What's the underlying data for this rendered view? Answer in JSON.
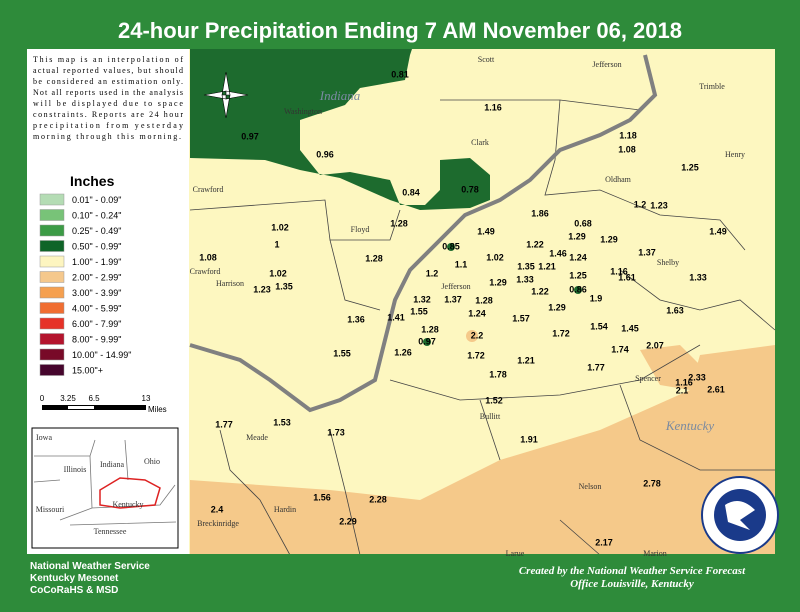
{
  "title": "24-hour Precipitation Ending 7 AM  November 06, 2018",
  "disclaimer": [
    "This map is an interpolation of",
    "actual reported values, but should",
    "be considered an estimation only.",
    "Not all reports used in the analysis",
    "will be displayed due to space",
    "constraints. Reports are 24 hour",
    "precipitation from yesterday",
    "morning through this morning."
  ],
  "legend": {
    "title": "Inches",
    "items": [
      {
        "label": "0.01\" - 0.09\"",
        "color": "#b4dcb4"
      },
      {
        "label": "0.10\" - 0.24\"",
        "color": "#78c378"
      },
      {
        "label": "0.25\" - 0.49\"",
        "color": "#3c9b46"
      },
      {
        "label": "0.50\" - 0.99\"",
        "color": "#0f6428"
      },
      {
        "label": "1.00\" - 1.99\"",
        "color": "#fdf5c0"
      },
      {
        "label": "2.00\" - 2.99\"",
        "color": "#f5c88c"
      },
      {
        "label": "3.00\" - 3.99\"",
        "color": "#f5a050"
      },
      {
        "label": "4.00\" - 5.99\"",
        "color": "#f06e32"
      },
      {
        "label": "6.00\" - 7.99\"",
        "color": "#e63228"
      },
      {
        "label": "8.00\" - 9.99\"",
        "color": "#b4142d"
      },
      {
        "label": "10.00\" - 14.99\"",
        "color": "#780a28"
      },
      {
        "label": "15.00\"+",
        "color": "#46052d"
      }
    ]
  },
  "scale": {
    "ticks": [
      0,
      3.25,
      6.5,
      13
    ],
    "unit": "Miles"
  },
  "inset_labels": [
    "Iowa",
    "Illinois",
    "Indiana",
    "Ohio",
    "Missouri",
    "Kentucky",
    "Tennessee"
  ],
  "state_labels": [
    "Indiana",
    "Kentucky"
  ],
  "county_labels": [
    "Scott",
    "Jefferson",
    "Trimble",
    "Washington",
    "Clark",
    "Henry",
    "Oldham",
    "Crawford",
    "Floyd",
    "Crawford",
    "Harrison",
    "Jefferson",
    "Shelby",
    "Spencer",
    "Bullitt",
    "Meade",
    "Hardin",
    "Nelson",
    "Breckinridge",
    "Larue",
    "Marion"
  ],
  "values": [
    0.81,
    1.16,
    0.97,
    0.96,
    1.18,
    1.08,
    1.25,
    0.84,
    0.78,
    1.2,
    1.23,
    1.49,
    1.02,
    1.28,
    1.86,
    0.68,
    1.29,
    1.29,
    1.49,
    1,
    1.22,
    1.46,
    1.24,
    1.37,
    0.85,
    1.08,
    1.28,
    1.02,
    1.1,
    1.35,
    1.21,
    1.02,
    1.2,
    1.33,
    1.25,
    1.16,
    1.61,
    1.33,
    1.23,
    1.35,
    1.29,
    0.86,
    1.22,
    1.32,
    1.37,
    1.28,
    1.9,
    1.55,
    1.24,
    1.29,
    1.41,
    1.63,
    1.36,
    1.57,
    1.54,
    1.28,
    1.72,
    1.45,
    2.2,
    0.97,
    1.26,
    1.55,
    1.74,
    2.07,
    1.72,
    1.21,
    1.77,
    1.78,
    2.33,
    1.16,
    2.1,
    2.61,
    1.52,
    1.77,
    1.53,
    1.73,
    1.91,
    2.78,
    1.56,
    2.28,
    2.4,
    2.29,
    2.17
  ],
  "footer_left": [
    "National Weather Service",
    "Kentucky Mesonet",
    "CoCoRaHS & MSD"
  ],
  "footer_right": [
    "Created by the National Weather Service Forecast",
    "Office Louisville, Kentucky"
  ]
}
